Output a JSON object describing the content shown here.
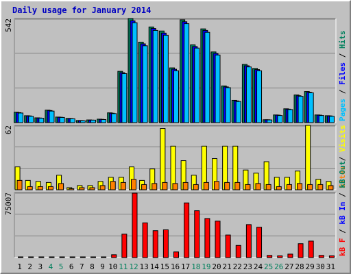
{
  "chart_data": [
    {
      "type": "bar",
      "title": "Daily usage for January 2014",
      "ylim": [
        0,
        542
      ],
      "yticks": [
        542
      ],
      "grid_divisions": 3,
      "legend_separator": " / ",
      "series": [
        {
          "name": "Pages",
          "color": "#00c0ff",
          "values": [
            50,
            33,
            23,
            60,
            27,
            20,
            10,
            13,
            16,
            47,
            255,
            520,
            400,
            480,
            455,
            270,
            515,
            388,
            470,
            352,
            182,
            110,
            290,
            270,
            14,
            37,
            68,
            137,
            155,
            37,
            33
          ]
        },
        {
          "name": "Files",
          "color": "#0000ff",
          "values": [
            52,
            35,
            24,
            63,
            28,
            21,
            11,
            13,
            17,
            49,
            260,
            530,
            410,
            490,
            466,
            278,
            525,
            396,
            480,
            360,
            186,
            113,
            296,
            276,
            15,
            39,
            70,
            140,
            158,
            39,
            35
          ]
        },
        {
          "name": "Hits",
          "color": "#00805c",
          "values": [
            54,
            36,
            25,
            65,
            29,
            22,
            11,
            14,
            18,
            51,
            267,
            542,
            419,
            498,
            477,
            285,
            535,
            405,
            488,
            368,
            191,
            116,
            303,
            282,
            15,
            40,
            72,
            144,
            162,
            40,
            36
          ]
        }
      ]
    },
    {
      "type": "bar",
      "ylim": [
        0,
        62
      ],
      "yticks": [
        62
      ],
      "grid_divisions": 3,
      "legend_separator": " / ",
      "series": [
        {
          "name": "Sites",
          "color": "#ff8000",
          "values": [
            9,
            3,
            3,
            3,
            6,
            1,
            2,
            2,
            4,
            8,
            7,
            10,
            5,
            6,
            7,
            6,
            7,
            5,
            7,
            8,
            7,
            7,
            5,
            6,
            5,
            3,
            5,
            6,
            5,
            5,
            4
          ]
        },
        {
          "name": "Visits",
          "color": "#ffff00",
          "values": [
            22,
            9,
            8,
            7,
            14,
            2,
            4,
            4,
            8,
            12,
            12,
            22,
            9,
            20,
            59,
            42,
            28,
            14,
            42,
            30,
            42,
            42,
            19,
            16,
            27,
            12,
            12,
            18,
            62,
            10,
            8
          ]
        }
      ]
    },
    {
      "type": "bar",
      "ylim": [
        0,
        75007
      ],
      "yticks": [
        75007
      ],
      "grid_divisions": 3,
      "legend_separator": " / ",
      "categories": [
        "1",
        "2",
        "3",
        "4",
        "5",
        "6",
        "7",
        "8",
        "9",
        "10",
        "11",
        "12",
        "13",
        "14",
        "15",
        "16",
        "17",
        "18",
        "19",
        "20",
        "21",
        "22",
        "23",
        "24",
        "25",
        "26",
        "27",
        "28",
        "29",
        "30",
        "31"
      ],
      "category_colors": [
        "#000000",
        "#000000",
        "#000000",
        "#00805c",
        "#00805c",
        "#000000",
        "#000000",
        "#000000",
        "#000000",
        "#000000",
        "#00805c",
        "#00805c",
        "#000000",
        "#000000",
        "#000000",
        "#000000",
        "#000000",
        "#00805c",
        "#00805c",
        "#000000",
        "#000000",
        "#000000",
        "#000000",
        "#000000",
        "#00805c",
        "#00805c",
        "#000000",
        "#000000",
        "#000000",
        "#000000",
        "#000000"
      ],
      "series": [
        {
          "name": "kB F",
          "color": "#ff0000",
          "values": [
            800,
            800,
            800,
            800,
            800,
            800,
            800,
            800,
            800,
            3260,
            27000,
            74200,
            40000,
            31000,
            32000,
            6500,
            63000,
            54000,
            45000,
            42000,
            26000,
            14000,
            38000,
            35000,
            2500,
            2000,
            4000,
            16000,
            19000,
            2500,
            2000
          ]
        },
        {
          "name": "kB In",
          "color": "#0000ff",
          "values": [
            0,
            0,
            0,
            0,
            0,
            0,
            0,
            0,
            0,
            0,
            0,
            0,
            0,
            0,
            0,
            0,
            0,
            0,
            0,
            0,
            0,
            0,
            0,
            0,
            0,
            0,
            0,
            0,
            0,
            0,
            0
          ]
        },
        {
          "name": "kB Out",
          "color": "#00805c",
          "values": [
            0,
            0,
            0,
            0,
            0,
            0,
            0,
            0,
            0,
            0,
            0,
            0,
            0,
            0,
            0,
            0,
            0,
            0,
            0,
            0,
            0,
            0,
            0,
            0,
            0,
            0,
            0,
            0,
            0,
            0,
            0
          ]
        }
      ]
    }
  ]
}
